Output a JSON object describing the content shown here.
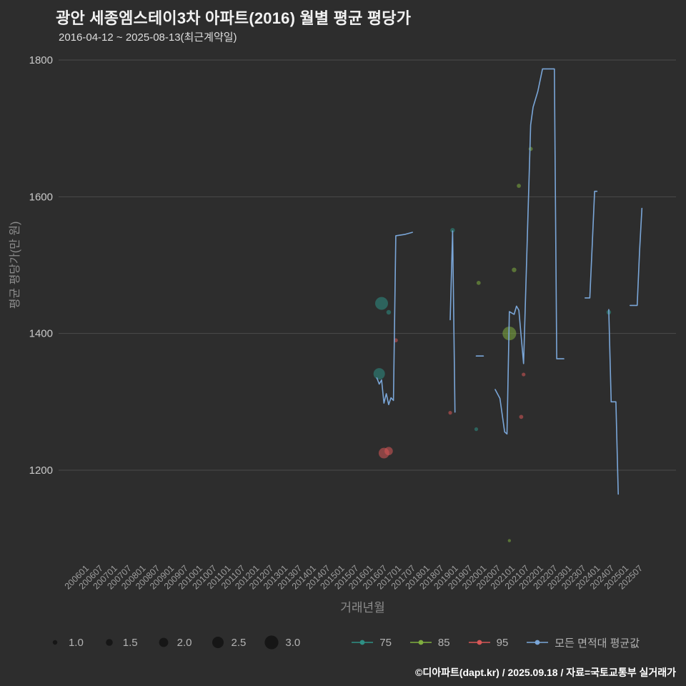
{
  "chart_data": {
    "type": "line+bubble-scatter",
    "title": "광안 세종엠스테이3차 아파트(2016) 월별 평균 평당가",
    "subtitle": "2016-04-12 ~ 2025-08-13(최근계약일)",
    "xlabel": "거래년월",
    "ylabel": "평균 평당가(만 원)",
    "ylim": [
      1080,
      1820
    ],
    "yticks": [
      1200,
      1400,
      1600,
      1800
    ],
    "grid": "horizontal-only",
    "legend_position": "bottom",
    "x_tick_labels": [
      "200601",
      "200607",
      "200701",
      "200707",
      "200801",
      "200807",
      "200901",
      "200907",
      "201001",
      "201007",
      "201101",
      "201107",
      "201201",
      "201207",
      "201301",
      "201307",
      "201401",
      "201407",
      "201501",
      "201507",
      "201601",
      "201607",
      "201701",
      "201707",
      "201801",
      "201807",
      "201901",
      "201907",
      "202001",
      "202007",
      "202101",
      "202107",
      "202201",
      "202207",
      "202301",
      "202307",
      "202401",
      "202407",
      "202501",
      "202507"
    ],
    "legend_sizes": [
      1.0,
      1.5,
      2.0,
      2.5,
      3.0
    ],
    "line_series": {
      "name": "모든 면적대 평균값",
      "color": "#7aa6d8",
      "segments": [
        [
          [
            "201604",
            1335
          ],
          [
            "201605",
            1326
          ],
          [
            "201606",
            1332
          ],
          [
            "201607",
            1298
          ],
          [
            "201608",
            1312
          ],
          [
            "201609",
            1296
          ],
          [
            "201610",
            1306
          ],
          [
            "201611",
            1302
          ],
          [
            "201612",
            1543
          ],
          [
            "201704",
            1545
          ],
          [
            "201707",
            1548
          ]
        ],
        [
          [
            "201811",
            1420
          ],
          [
            "201812",
            1550
          ],
          [
            "201901",
            1285
          ]
        ],
        [
          [
            "201910",
            1367
          ],
          [
            "202001",
            1367
          ]
        ],
        [
          [
            "202006",
            1318
          ],
          [
            "202008",
            1305
          ],
          [
            "202010",
            1256
          ],
          [
            "202011",
            1253
          ],
          [
            "202012",
            1432
          ],
          [
            "202102",
            1428
          ],
          [
            "202103",
            1440
          ],
          [
            "202104",
            1434
          ],
          [
            "202106",
            1356
          ],
          [
            "202109",
            1705
          ],
          [
            "202110",
            1731
          ],
          [
            "202112",
            1754
          ],
          [
            "202202",
            1787
          ],
          [
            "202207",
            1787
          ],
          [
            "202208",
            1363
          ],
          [
            "202211",
            1363
          ]
        ],
        [
          [
            "202308",
            1452
          ],
          [
            "202310",
            1452
          ],
          [
            "202311",
            1530
          ],
          [
            "202312",
            1608
          ],
          [
            "202401",
            1608
          ]
        ],
        [
          [
            "202406",
            1435
          ],
          [
            "202407",
            1300
          ],
          [
            "202409",
            1300
          ],
          [
            "202410",
            1165
          ]
        ],
        [
          [
            "202503",
            1441
          ],
          [
            "202506",
            1441
          ],
          [
            "202507",
            1520
          ],
          [
            "202508",
            1583
          ]
        ]
      ]
    },
    "bubble_series": [
      {
        "name": "75",
        "color": "#2e9085",
        "points": [
          [
            "201605",
            1341,
            2.5
          ],
          [
            "201606",
            1444,
            2.8
          ],
          [
            "201609",
            1431,
            1.0
          ],
          [
            "201812",
            1551,
            1.0
          ],
          [
            "201910",
            1260,
            0.8
          ],
          [
            "202406",
            1431,
            1.0
          ]
        ]
      },
      {
        "name": "85",
        "color": "#7fae3f",
        "points": [
          [
            "201911",
            1474,
            0.9
          ],
          [
            "202012",
            1400,
            3.0
          ],
          [
            "202012",
            1097,
            0.7
          ],
          [
            "202102",
            1493,
            1.0
          ],
          [
            "202104",
            1616,
            0.9
          ],
          [
            "202109",
            1670,
            0.9
          ]
        ]
      },
      {
        "name": "95",
        "color": "#d85757",
        "points": [
          [
            "201607",
            1225,
            2.3
          ],
          [
            "201609",
            1228,
            1.8
          ],
          [
            "201612",
            1390,
            0.9
          ],
          [
            "201811",
            1284,
            0.8
          ],
          [
            "202105",
            1278,
            0.9
          ],
          [
            "202106",
            1340,
            0.8
          ]
        ]
      }
    ]
  },
  "footer": {
    "attribution": "©디아파트(dapt.kr) / 2025.09.18 / 자료=국토교통부 실거래가"
  },
  "colors": {
    "background": "#2d2d2d",
    "grid": "#4b4b4b",
    "tick_label": "#9e9e9e",
    "y_tick_label": "#c9c9c9",
    "axis_label": "#8c8c8c",
    "title": "#f2f2f2",
    "line": "#7aa6d8",
    "series_75": "#2e9085",
    "series_85": "#7fae3f",
    "series_95": "#d85757",
    "size_legend_dot": "#161616"
  }
}
